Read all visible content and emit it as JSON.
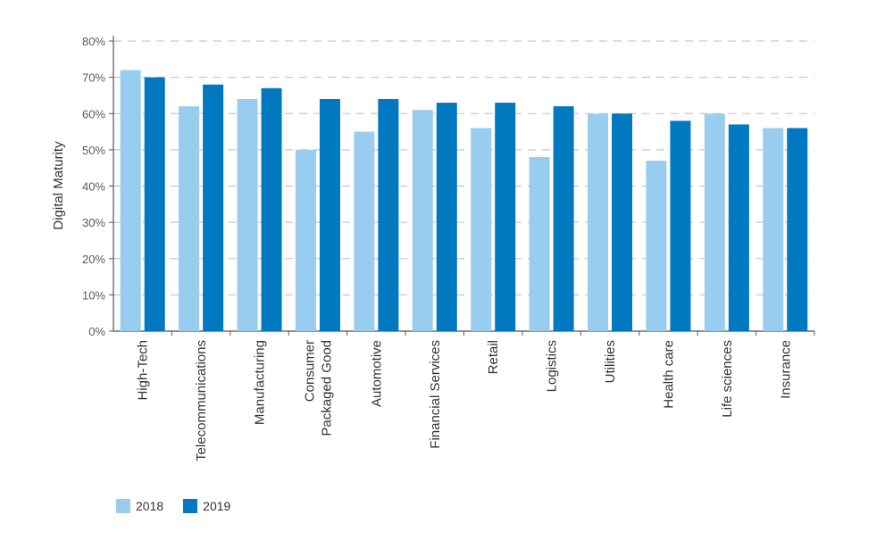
{
  "chart_data": {
    "type": "bar",
    "categories": [
      "High-Tech",
      "Telecommunications",
      "Manufacturing",
      "Consumer Packaged Good",
      "Automotive",
      "Financial Services",
      "Retail",
      "Logistics",
      "Utilities",
      "Health care",
      "Life sciences",
      "Insurance"
    ],
    "category_lines": [
      [
        "High-Tech"
      ],
      [
        "Telecommunications"
      ],
      [
        "Manufacturing"
      ],
      [
        "Consumer",
        "Packaged Good"
      ],
      [
        "Automotive"
      ],
      [
        "Financial Services"
      ],
      [
        "Retail"
      ],
      [
        "Logistics"
      ],
      [
        "Utilities"
      ],
      [
        "Health care"
      ],
      [
        "Life sciences"
      ],
      [
        "Insurance"
      ]
    ],
    "series": [
      {
        "name": "2018",
        "color": "#99cdef",
        "values": [
          72,
          62,
          64,
          50,
          55,
          61,
          56,
          48,
          60,
          47,
          60,
          56
        ]
      },
      {
        "name": "2019",
        "color": "#0079c1",
        "values": [
          70,
          68,
          67,
          64,
          64,
          63,
          63,
          62,
          60,
          58,
          57,
          56
        ]
      }
    ],
    "ylabel": "Digital Maturity",
    "ylim": [
      0,
      80
    ],
    "yticks": [
      "0%",
      "10%",
      "20%",
      "30%",
      "40%",
      "50%",
      "60%",
      "70%",
      "80%"
    ],
    "grid": true,
    "legend_position": "bottom-left"
  }
}
